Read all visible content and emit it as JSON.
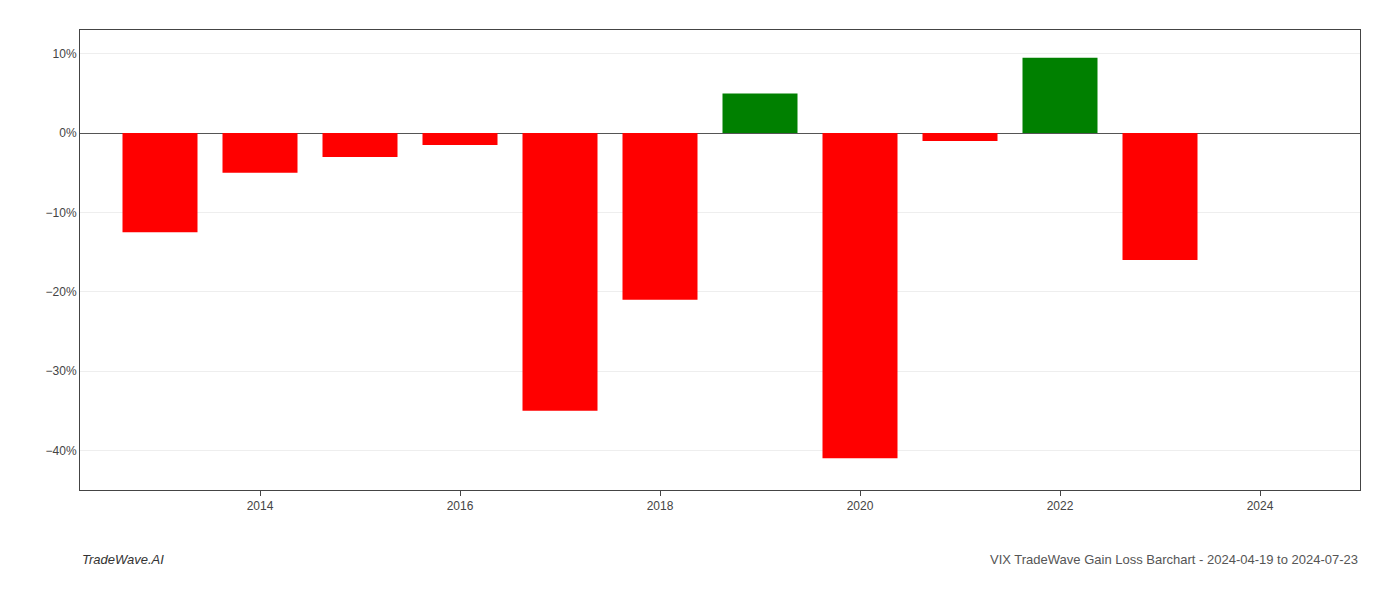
{
  "chart_data": {
    "type": "bar",
    "x": [
      2013,
      2014,
      2015,
      2016,
      2017,
      2018,
      2019,
      2020,
      2021,
      2022,
      2023
    ],
    "values": [
      -12.5,
      -5.0,
      -3.0,
      -1.5,
      -35.0,
      -21.0,
      5.0,
      -41.0,
      -1.0,
      9.5,
      -16.0
    ],
    "colors": [
      "#ff0000",
      "#ff0000",
      "#ff0000",
      "#ff0000",
      "#ff0000",
      "#ff0000",
      "#008000",
      "#ff0000",
      "#ff0000",
      "#008000",
      "#ff0000"
    ],
    "xlim": [
      2012.2,
      2025.0
    ],
    "xticks": [
      2014,
      2016,
      2018,
      2020,
      2022,
      2024
    ],
    "ylim": [
      -45,
      13
    ],
    "yticks": [
      {
        "value": -40,
        "label": "−40%"
      },
      {
        "value": -30,
        "label": "−30%"
      },
      {
        "value": -20,
        "label": "−20%"
      },
      {
        "value": -10,
        "label": "−10%"
      },
      {
        "value": 0,
        "label": "0%"
      },
      {
        "value": 10,
        "label": "10%"
      }
    ],
    "grid": true,
    "annotations": [
      "TradeWave.AI",
      "VIX TradeWave Gain Loss Barchart - 2024-04-19 to 2024-07-23"
    ]
  }
}
